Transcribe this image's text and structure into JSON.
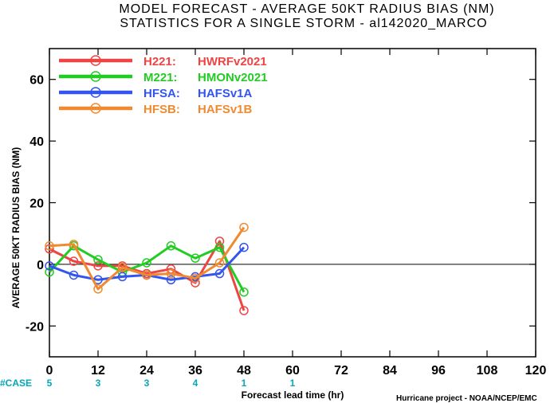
{
  "header": {
    "title_line1": "MODEL FORECAST - AVERAGE 50KT RADIUS BIAS (NM)",
    "title_line2": "STATISTICS FOR A SINGLE STORM - al142020_MARCO"
  },
  "footer": {
    "case_label": "#CASE",
    "credit": "Hurricane project - NOAA/NCEP/EMC"
  },
  "colors": {
    "case_text": "#00a8b8",
    "zero_line": "#000000"
  },
  "chart_data": {
    "type": "line",
    "xlabel": "Forecast lead time (hr)",
    "ylabel": "AVERAGE 50KT RADIUS BIAS (NM)",
    "xlim": [
      0,
      120
    ],
    "ylim": [
      -30,
      70
    ],
    "xticks": [
      0,
      12,
      24,
      36,
      48,
      60,
      72,
      84,
      96,
      108,
      120
    ],
    "yticks": [
      -20,
      0,
      20,
      40,
      60
    ],
    "ytick_labels": [
      "-20",
      "0",
      "20",
      "40",
      "60"
    ],
    "legend_position": "top-left",
    "grid": false,
    "cases": [
      {
        "x": 0,
        "n": "5"
      },
      {
        "x": 12,
        "n": "3"
      },
      {
        "x": 24,
        "n": "3"
      },
      {
        "x": 36,
        "n": "4"
      },
      {
        "x": 48,
        "n": "1"
      },
      {
        "x": 60,
        "n": "1"
      }
    ],
    "series": [
      {
        "name": "H221:",
        "label": "HWRFv2021",
        "color": "#ee4444",
        "x": [
          0,
          6,
          12,
          18,
          24,
          30,
          36,
          42,
          48
        ],
        "y": [
          5,
          1,
          -0.5,
          -0.5,
          -3,
          -1.5,
          -6,
          7.5,
          -15
        ]
      },
      {
        "name": "M221:",
        "label": "HMONv2021",
        "color": "#22cc22",
        "x": [
          0,
          6,
          12,
          18,
          24,
          30,
          36,
          42,
          48
        ],
        "y": [
          -2.5,
          6,
          1.5,
          -2.5,
          0.5,
          6,
          2,
          5.5,
          -9
        ]
      },
      {
        "name": "HFSA:",
        "label": "HAFSv1A",
        "color": "#3355ee",
        "x": [
          0,
          6,
          12,
          18,
          24,
          30,
          36,
          42,
          48
        ],
        "y": [
          -0.5,
          -3.5,
          -5,
          -4,
          -3.5,
          -5,
          -4,
          -3,
          5.5
        ]
      },
      {
        "name": "HFSB:",
        "label": "HAFSv1B",
        "color": "#f08a30",
        "x": [
          0,
          6,
          12,
          18,
          24,
          30,
          36,
          42,
          48
        ],
        "y": [
          6,
          6.5,
          -8,
          -1,
          -3.5,
          -3,
          -4.5,
          0.5,
          12
        ]
      }
    ]
  }
}
